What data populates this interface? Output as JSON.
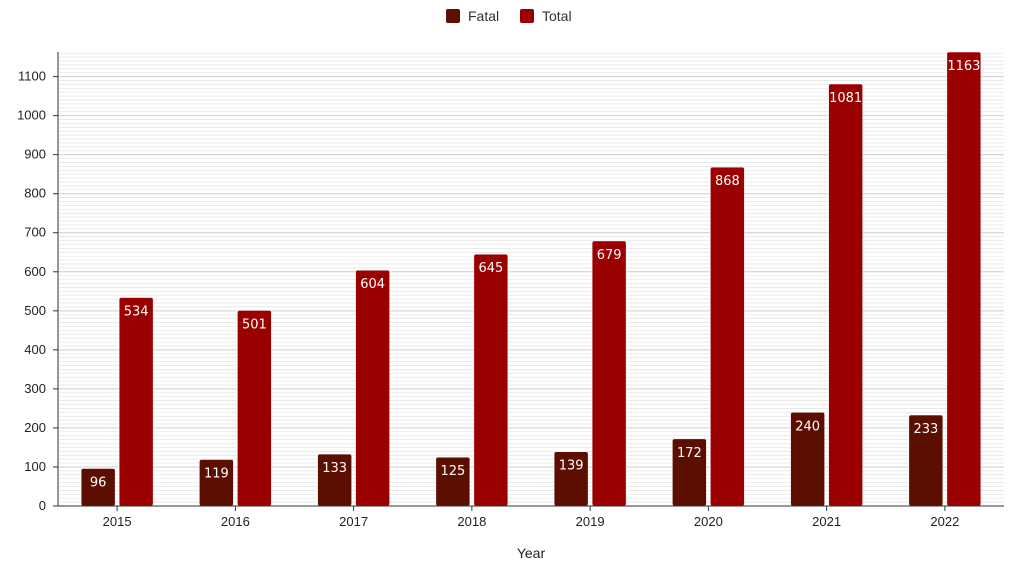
{
  "chart_data": {
    "type": "bar",
    "title": "",
    "xlabel": "Year",
    "ylabel": "",
    "categories": [
      "2015",
      "2016",
      "2017",
      "2018",
      "2019",
      "2020",
      "2021",
      "2022"
    ],
    "series": [
      {
        "name": "Fatal",
        "color": "#5c0f00",
        "values": [
          96,
          119,
          133,
          125,
          139,
          172,
          240,
          233
        ]
      },
      {
        "name": "Total",
        "color": "#9b0000",
        "values": [
          534,
          501,
          604,
          645,
          679,
          868,
          1081,
          1163
        ]
      }
    ],
    "ylim": [
      0,
      1163
    ],
    "yticks": [
      0,
      100,
      200,
      300,
      400,
      500,
      600,
      700,
      800,
      900,
      1000,
      1100
    ],
    "grid": true,
    "legend_position": "top-center",
    "data_labels": true
  }
}
